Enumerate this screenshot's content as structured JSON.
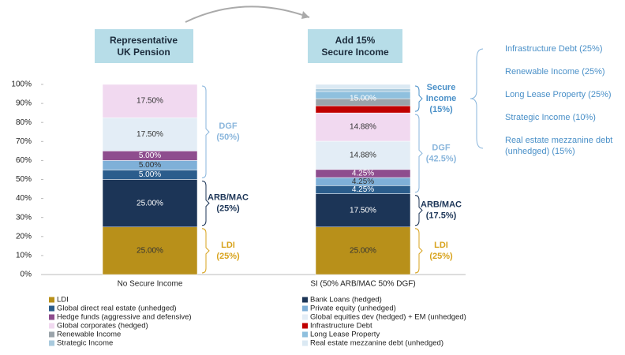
{
  "chart_data": {
    "type": "stacked_bar",
    "categories": [
      "No Secure Income",
      "SI (50% ARB/MAC 50% DGF)"
    ],
    "ylim": [
      0,
      100
    ],
    "yticks": [
      {
        "value": 0,
        "label": "0%"
      },
      {
        "value": 10,
        "label": "10%"
      },
      {
        "value": 20,
        "label": "20%"
      },
      {
        "value": 30,
        "label": "30%"
      },
      {
        "value": 40,
        "label": "40%"
      },
      {
        "value": 50,
        "label": "50%"
      },
      {
        "value": 60,
        "label": "60%"
      },
      {
        "value": 70,
        "label": "70%"
      },
      {
        "value": 80,
        "label": "80%"
      },
      {
        "value": 90,
        "label": "90%"
      },
      {
        "value": 100,
        "label": "100%"
      }
    ],
    "series": [
      {
        "name": "LDI",
        "color": "#b8901a",
        "values": [
          25,
          25
        ],
        "value_labels": [
          "25.00%",
          "25.00%"
        ]
      },
      {
        "name": "Bank Loans (hedged)",
        "color": "#1c3557",
        "values": [
          25,
          17.5
        ],
        "value_labels": [
          "25.00%",
          "17.50%"
        ]
      },
      {
        "name": "Global direct real estate (unhedged)",
        "color": "#2b5d8c",
        "values": [
          5,
          4.25
        ],
        "value_labels": [
          "5.00%",
          "4.25%"
        ]
      },
      {
        "name": "Private equity (unhedged)",
        "color": "#7fb0d8",
        "values": [
          5,
          4.25
        ],
        "value_labels": [
          "5.00%",
          "4.25%"
        ]
      },
      {
        "name": "Hedge funds (aggressive and defensive)",
        "color": "#8e4d8e",
        "values": [
          5,
          4.25
        ],
        "value_labels": [
          "5.00%",
          "4.25%"
        ]
      },
      {
        "name": "Global equities dev (hedged) + EM (unhedged)",
        "color": "#e3edf6",
        "values": [
          17.5,
          14.88
        ],
        "value_labels": [
          "17.50%",
          "14.88%"
        ]
      },
      {
        "name": "Global corporates (hedged)",
        "color": "#f1d9f0",
        "values": [
          17.5,
          14.88
        ],
        "value_labels": [
          "17.50%",
          "14.88%"
        ]
      },
      {
        "name": "Infrastructure Debt",
        "color": "#c00000",
        "values": [
          0,
          3.75
        ],
        "value_labels": [
          null,
          null
        ]
      },
      {
        "name": "Renewable Income",
        "color": "#9aa3aa",
        "values": [
          0,
          3.75
        ],
        "value_labels": [
          null,
          null
        ]
      },
      {
        "name": "Long Lease Property",
        "color": "#8fc0de",
        "values": [
          0,
          3.75
        ],
        "value_labels": [
          null,
          null
        ]
      },
      {
        "name": "Strategic Income",
        "color": "#a9cadd",
        "values": [
          0,
          1.5
        ],
        "value_labels": [
          null,
          null
        ]
      },
      {
        "name": "Real estate mezzanine debt (unhedged)",
        "color": "#dbe9f3",
        "values": [
          0,
          2.25
        ],
        "value_labels": [
          null,
          null
        ]
      }
    ],
    "secure_total_label": "15.00%",
    "boxes": [
      [
        "Representative",
        "UK Pension"
      ],
      [
        "Add 15%",
        "Secure Income"
      ]
    ],
    "brackets": [
      [
        "DGF",
        "(50%)"
      ],
      [
        "ARB/MAC",
        "(25%)"
      ],
      [
        "LDI",
        "(25%)"
      ],
      [
        "Secure",
        "Income",
        "(15%)"
      ],
      [
        "DGF",
        "(42.5%)"
      ],
      [
        "ARB/MAC",
        "(17.5%)"
      ],
      [
        "LDI",
        "(25%)"
      ]
    ],
    "secure_income_breakdown": [
      [
        "Infrastructure Debt (25%)"
      ],
      [
        "Renewable Income (25%)"
      ],
      [
        "Long Lease Property (25%)"
      ],
      [
        "Strategic Income (10%)"
      ],
      [
        "Real estate mezzanine debt",
        "(unhedged) (15%)"
      ]
    ]
  }
}
